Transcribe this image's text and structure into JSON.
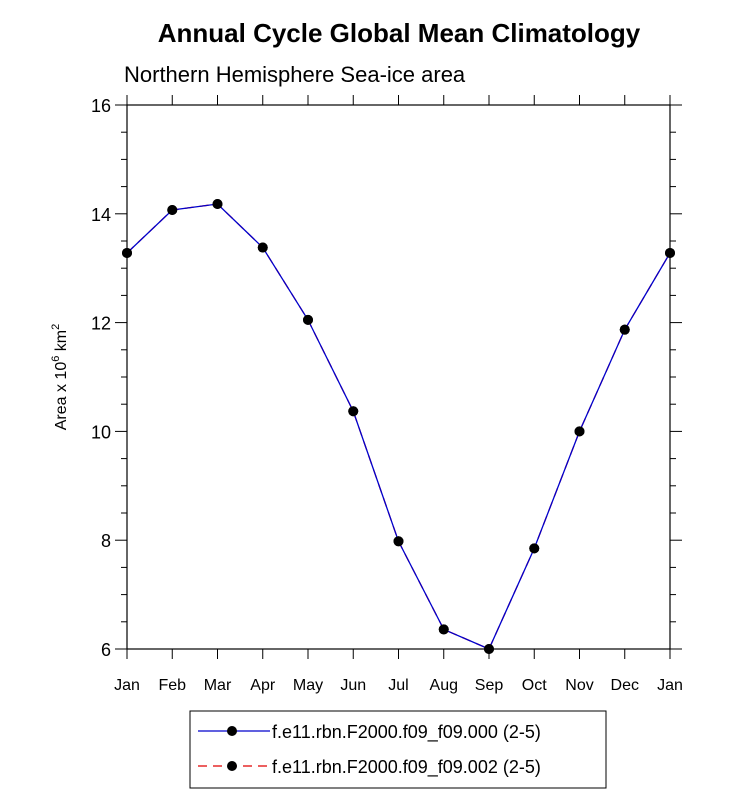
{
  "chart_data": {
    "type": "line",
    "title": "Annual Cycle Global Mean Climatology",
    "subtitle": "Northern Hemisphere Sea-ice area",
    "ylabel": {
      "prefix": "Area x 10",
      "exp1": "6",
      "mid": " km",
      "exp2": "2"
    },
    "categories": [
      "Jan",
      "Feb",
      "Mar",
      "Apr",
      "May",
      "Jun",
      "Jul",
      "Aug",
      "Sep",
      "Oct",
      "Nov",
      "Dec",
      "Jan"
    ],
    "ylim": [
      6,
      16
    ],
    "yticks": [
      6,
      8,
      10,
      12,
      14,
      16
    ],
    "series": [
      {
        "name": "f.e11.rbn.F2000.f09_f09.000 (2-5)",
        "color": "#0000cc",
        "dash": "solid",
        "marker": "filled-circle",
        "values": [
          13.28,
          14.07,
          14.18,
          13.38,
          12.05,
          10.37,
          7.98,
          6.36,
          6.0,
          7.85,
          10.0,
          11.87,
          13.28
        ]
      },
      {
        "name": "f.e11.rbn.F2000.f09_f09.002 (2-5)",
        "color": "#e00000",
        "dash": "dashed",
        "marker": "filled-circle",
        "values": [
          13.28,
          14.07,
          14.18,
          13.38,
          12.05,
          10.37,
          7.98,
          6.36,
          6.0,
          7.85,
          10.0,
          11.87,
          13.28
        ]
      }
    ],
    "grid": false,
    "legend": "bottom-center"
  }
}
